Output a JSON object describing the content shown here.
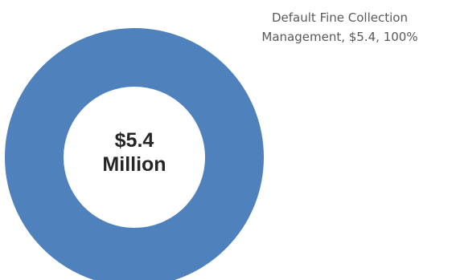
{
  "chart_data": {
    "type": "pie",
    "donut": true,
    "title": "",
    "legend": "none",
    "center_text": [
      "$5.4",
      "Million"
    ],
    "slices": [
      {
        "label": "Default Fine Collection Management",
        "value": 5.4,
        "percent": 100,
        "color": "#4f81bd",
        "data_label_lines": [
          "Default Fine Collection",
          "Management, $5.4, 100%"
        ]
      }
    ]
  }
}
